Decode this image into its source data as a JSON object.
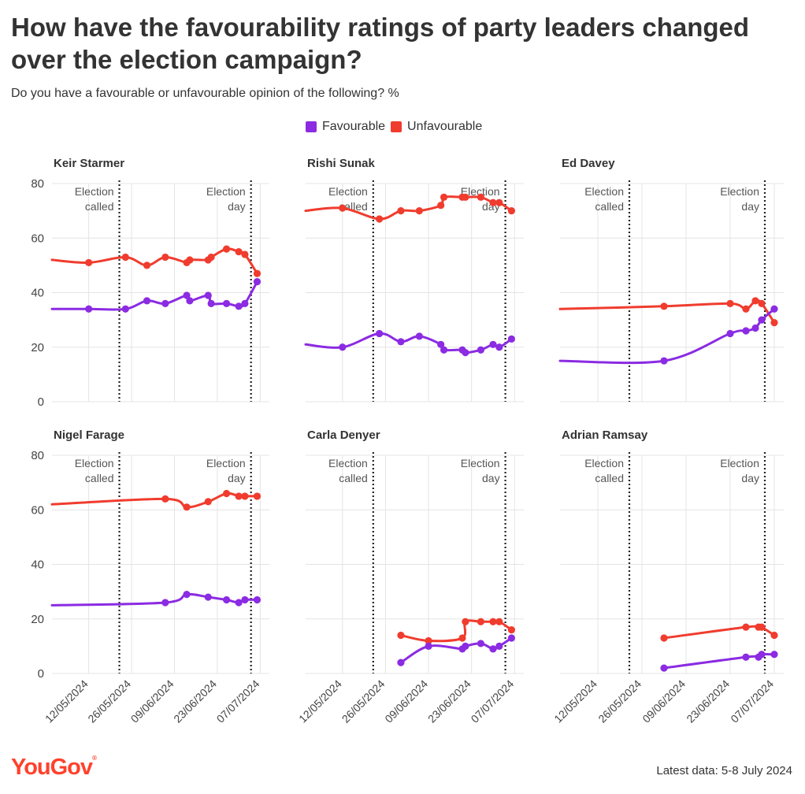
{
  "title": "How have the favourability ratings of party leaders changed over the election campaign?",
  "subtitle": "Do you have a favourable or unfavourable opinion of the following? %",
  "legend": {
    "favourable": "Favourable",
    "unfavourable": "Unfavourable"
  },
  "colors": {
    "favourable": "#8b2be2",
    "unfavourable": "#f03c2e",
    "grid": "#e4e4e4",
    "text": "#333333",
    "brand": "#ff412c"
  },
  "brand": {
    "name": "YouGov",
    "mark": "®"
  },
  "footnote": "Latest data: 5-8 July 2024",
  "chart_data": {
    "type": "line",
    "y_range": [
      0,
      80
    ],
    "y_ticks": [
      0,
      20,
      40,
      60,
      80
    ],
    "x_range": [
      "2024-04-30",
      "2024-07-10"
    ],
    "x_ticks": [
      "2024-05-12",
      "2024-05-26",
      "2024-06-09",
      "2024-06-23",
      "2024-07-07"
    ],
    "x_tick_labels": [
      "12/05/2024",
      "26/05/2024",
      "09/06/2024",
      "23/06/2024",
      "07/07/2024"
    ],
    "annotations": [
      {
        "date": "2024-05-22",
        "label_lines": [
          "Election",
          "called"
        ]
      },
      {
        "date": "2024-07-04",
        "label_lines": [
          "Election",
          "day"
        ]
      }
    ],
    "panels": [
      {
        "name": "Keir Starmer",
        "favourable": [
          [
            "2024-04-30",
            34
          ],
          [
            "2024-05-12",
            34
          ],
          [
            "2024-05-24",
            34
          ],
          [
            "2024-05-31",
            37
          ],
          [
            "2024-06-06",
            36
          ],
          [
            "2024-06-13",
            39
          ],
          [
            "2024-06-14",
            37
          ],
          [
            "2024-06-20",
            39
          ],
          [
            "2024-06-21",
            36
          ],
          [
            "2024-06-26",
            36
          ],
          [
            "2024-06-30",
            35
          ],
          [
            "2024-07-02",
            36
          ],
          [
            "2024-07-06",
            44
          ]
        ],
        "unfavourable": [
          [
            "2024-04-30",
            52
          ],
          [
            "2024-05-12",
            51
          ],
          [
            "2024-05-24",
            53
          ],
          [
            "2024-05-31",
            50
          ],
          [
            "2024-06-06",
            53
          ],
          [
            "2024-06-13",
            51
          ],
          [
            "2024-06-14",
            52
          ],
          [
            "2024-06-20",
            52
          ],
          [
            "2024-06-21",
            53
          ],
          [
            "2024-06-26",
            56
          ],
          [
            "2024-06-30",
            55
          ],
          [
            "2024-07-02",
            54
          ],
          [
            "2024-07-06",
            47
          ]
        ]
      },
      {
        "name": "Rishi Sunak",
        "favourable": [
          [
            "2024-04-30",
            21
          ],
          [
            "2024-05-12",
            20
          ],
          [
            "2024-05-24",
            25
          ],
          [
            "2024-05-31",
            22
          ],
          [
            "2024-06-06",
            24
          ],
          [
            "2024-06-13",
            21
          ],
          [
            "2024-06-14",
            19
          ],
          [
            "2024-06-20",
            19
          ],
          [
            "2024-06-21",
            18
          ],
          [
            "2024-06-26",
            19
          ],
          [
            "2024-06-30",
            21
          ],
          [
            "2024-07-02",
            20
          ],
          [
            "2024-07-06",
            23
          ]
        ],
        "unfavourable": [
          [
            "2024-04-30",
            70
          ],
          [
            "2024-05-12",
            71
          ],
          [
            "2024-05-24",
            67
          ],
          [
            "2024-05-31",
            70
          ],
          [
            "2024-06-06",
            70
          ],
          [
            "2024-06-13",
            72
          ],
          [
            "2024-06-14",
            75
          ],
          [
            "2024-06-20",
            75
          ],
          [
            "2024-06-21",
            75
          ],
          [
            "2024-06-26",
            75
          ],
          [
            "2024-06-30",
            73
          ],
          [
            "2024-07-02",
            73
          ],
          [
            "2024-07-06",
            70
          ]
        ]
      },
      {
        "name": "Ed Davey",
        "favourable": [
          [
            "2024-04-30",
            15
          ],
          [
            "2024-06-02",
            15
          ],
          [
            "2024-06-23",
            25
          ],
          [
            "2024-06-28",
            26
          ],
          [
            "2024-07-01",
            27
          ],
          [
            "2024-07-03",
            30
          ],
          [
            "2024-07-07",
            34
          ]
        ],
        "unfavourable": [
          [
            "2024-04-30",
            34
          ],
          [
            "2024-06-02",
            35
          ],
          [
            "2024-06-23",
            36
          ],
          [
            "2024-06-28",
            34
          ],
          [
            "2024-07-01",
            37
          ],
          [
            "2024-07-03",
            36
          ],
          [
            "2024-07-07",
            29
          ]
        ]
      },
      {
        "name": "Nigel Farage",
        "favourable": [
          [
            "2024-04-30",
            25
          ],
          [
            "2024-06-06",
            26
          ],
          [
            "2024-06-13",
            29
          ],
          [
            "2024-06-20",
            28
          ],
          [
            "2024-06-26",
            27
          ],
          [
            "2024-06-30",
            26
          ],
          [
            "2024-07-02",
            27
          ],
          [
            "2024-07-06",
            27
          ]
        ],
        "unfavourable": [
          [
            "2024-04-30",
            62
          ],
          [
            "2024-06-06",
            64
          ],
          [
            "2024-06-13",
            61
          ],
          [
            "2024-06-20",
            63
          ],
          [
            "2024-06-26",
            66
          ],
          [
            "2024-06-30",
            65
          ],
          [
            "2024-07-02",
            65
          ],
          [
            "2024-07-06",
            65
          ]
        ]
      },
      {
        "name": "Carla Denyer",
        "favourable": [
          [
            "2024-05-31",
            4
          ],
          [
            "2024-06-09",
            10
          ],
          [
            "2024-06-20",
            9
          ],
          [
            "2024-06-21",
            10
          ],
          [
            "2024-06-26",
            11
          ],
          [
            "2024-06-30",
            9
          ],
          [
            "2024-07-02",
            10
          ],
          [
            "2024-07-06",
            13
          ]
        ],
        "unfavourable": [
          [
            "2024-05-31",
            14
          ],
          [
            "2024-06-09",
            12
          ],
          [
            "2024-06-20",
            13
          ],
          [
            "2024-06-21",
            19
          ],
          [
            "2024-06-26",
            19
          ],
          [
            "2024-06-30",
            19
          ],
          [
            "2024-07-02",
            19
          ],
          [
            "2024-07-06",
            16
          ]
        ]
      },
      {
        "name": "Adrian Ramsay",
        "favourable": [
          [
            "2024-06-02",
            2
          ],
          [
            "2024-06-28",
            6
          ],
          [
            "2024-07-02",
            6
          ],
          [
            "2024-07-03",
            7
          ],
          [
            "2024-07-07",
            7
          ]
        ],
        "unfavourable": [
          [
            "2024-06-02",
            13
          ],
          [
            "2024-06-28",
            17
          ],
          [
            "2024-07-02",
            17
          ],
          [
            "2024-07-03",
            17
          ],
          [
            "2024-07-07",
            14
          ]
        ]
      }
    ]
  }
}
